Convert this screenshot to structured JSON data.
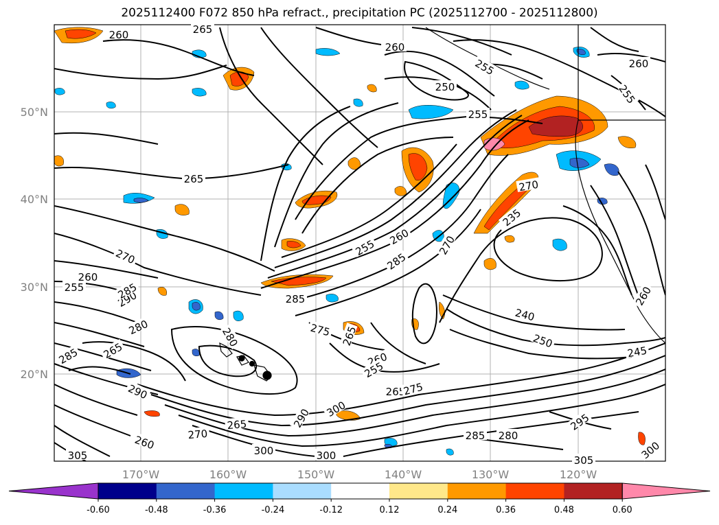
{
  "title": "2025112400 F072 850 hPa refract., precipitation PC (2025112700 - 2025112800)",
  "map": {
    "lat_labels": [
      "50°N",
      "40°N",
      "30°N",
      "20°N"
    ],
    "lon_labels": [
      "170°W",
      "160°W",
      "150°W",
      "140°W",
      "130°W",
      "120°W"
    ],
    "contour_labels": [
      {
        "text": "260"
      },
      {
        "text": "265"
      },
      {
        "text": "260"
      },
      {
        "text": "260"
      },
      {
        "text": "250"
      },
      {
        "text": "255"
      },
      {
        "text": "255"
      },
      {
        "text": "265"
      },
      {
        "text": "255"
      },
      {
        "text": "260"
      },
      {
        "text": "270"
      },
      {
        "text": "285"
      },
      {
        "text": "270"
      },
      {
        "text": "235"
      },
      {
        "text": "270"
      },
      {
        "text": "260"
      },
      {
        "text": "255"
      },
      {
        "text": "285"
      },
      {
        "text": "275"
      },
      {
        "text": "240"
      },
      {
        "text": "250"
      },
      {
        "text": "245"
      },
      {
        "text": "265"
      },
      {
        "text": "290"
      },
      {
        "text": "280"
      },
      {
        "text": "285"
      },
      {
        "text": "275"
      },
      {
        "text": "260"
      },
      {
        "text": "265"
      },
      {
        "text": "290"
      },
      {
        "text": "300"
      },
      {
        "text": "300"
      },
      {
        "text": "285"
      },
      {
        "text": "280"
      },
      {
        "text": "295"
      },
      {
        "text": "305"
      },
      {
        "text": "300"
      },
      {
        "text": "300"
      },
      {
        "text": "270"
      },
      {
        "text": "265"
      },
      {
        "text": "260"
      },
      {
        "text": "290"
      },
      {
        "text": "285"
      },
      {
        "text": "280"
      },
      {
        "text": "265"
      },
      {
        "text": "305"
      },
      {
        "text": "255"
      },
      {
        "text": "260"
      },
      {
        "text": "255"
      }
    ]
  },
  "colorbar": {
    "ticks": [
      "-0.60",
      "-0.48",
      "-0.36",
      "-0.24",
      "-0.12",
      "0.12",
      "0.24",
      "0.36",
      "0.48",
      "0.60"
    ],
    "colors": [
      "#9933cc",
      "#00008b",
      "#3366cc",
      "#00bbff",
      "#aaddff",
      "#ffffff",
      "#ffe88a",
      "#ff9900",
      "#ff4400",
      "#b22222",
      "#ff88aa"
    ]
  },
  "precip_colors": {
    "orange": "#ff9900",
    "red_orange": "#ff4400",
    "dark_red": "#b22222",
    "pink": "#ff88aa",
    "light_blue": "#00bbff",
    "blue": "#3366cc"
  }
}
